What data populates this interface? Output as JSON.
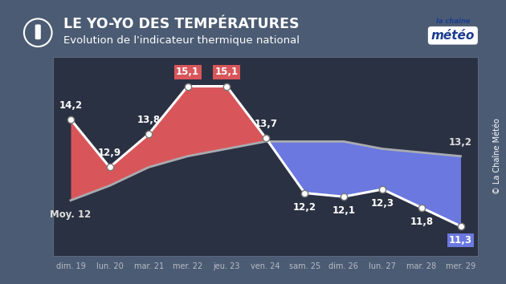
{
  "chart_data": {
    "type": "line",
    "title": "LE YO-YO DES TEMPÉRATURES",
    "subtitle": "Evolution de l'indicateur thermique national",
    "logo": [
      "la chaîne",
      "météo"
    ],
    "credit": "© La Chaîne Météo",
    "categories": [
      "dim. 19",
      "lun. 20",
      "mar. 21",
      "mer. 22",
      "jeu. 23",
      "ven. 24",
      "sam. 25",
      "dim. 26",
      "lun. 27",
      "mar. 28",
      "mer. 29"
    ],
    "series": [
      {
        "color": "#ffffff",
        "marker": "o",
        "line_style": "solid",
        "values": [
          14.2,
          12.9,
          13.8,
          15.1,
          15.1,
          13.7,
          12.2,
          12.1,
          12.3,
          11.8,
          11.3
        ],
        "value_labels": [
          "14,2",
          "12,9",
          "13,8",
          "15,1",
          "15,1",
          "13,7",
          "12,2",
          "12,1",
          "12,3",
          "11,8",
          "11,3"
        ]
      },
      {
        "color": "#a9abb0",
        "line_style": "solid",
        "values": [
          12.0,
          12.4,
          12.9,
          13.2,
          13.4,
          13.6,
          13.6,
          13.6,
          13.4,
          13.3,
          13.2
        ],
        "value_labels": [
          "Moy. 12",
          null,
          null,
          null,
          null,
          null,
          null,
          null,
          null,
          null,
          "13,2"
        ]
      }
    ],
    "ylim": [
      10.5,
      15.9
    ],
    "yticks": [],
    "grid": false,
    "data_labels": true,
    "tick_labels": "x"
  }
}
